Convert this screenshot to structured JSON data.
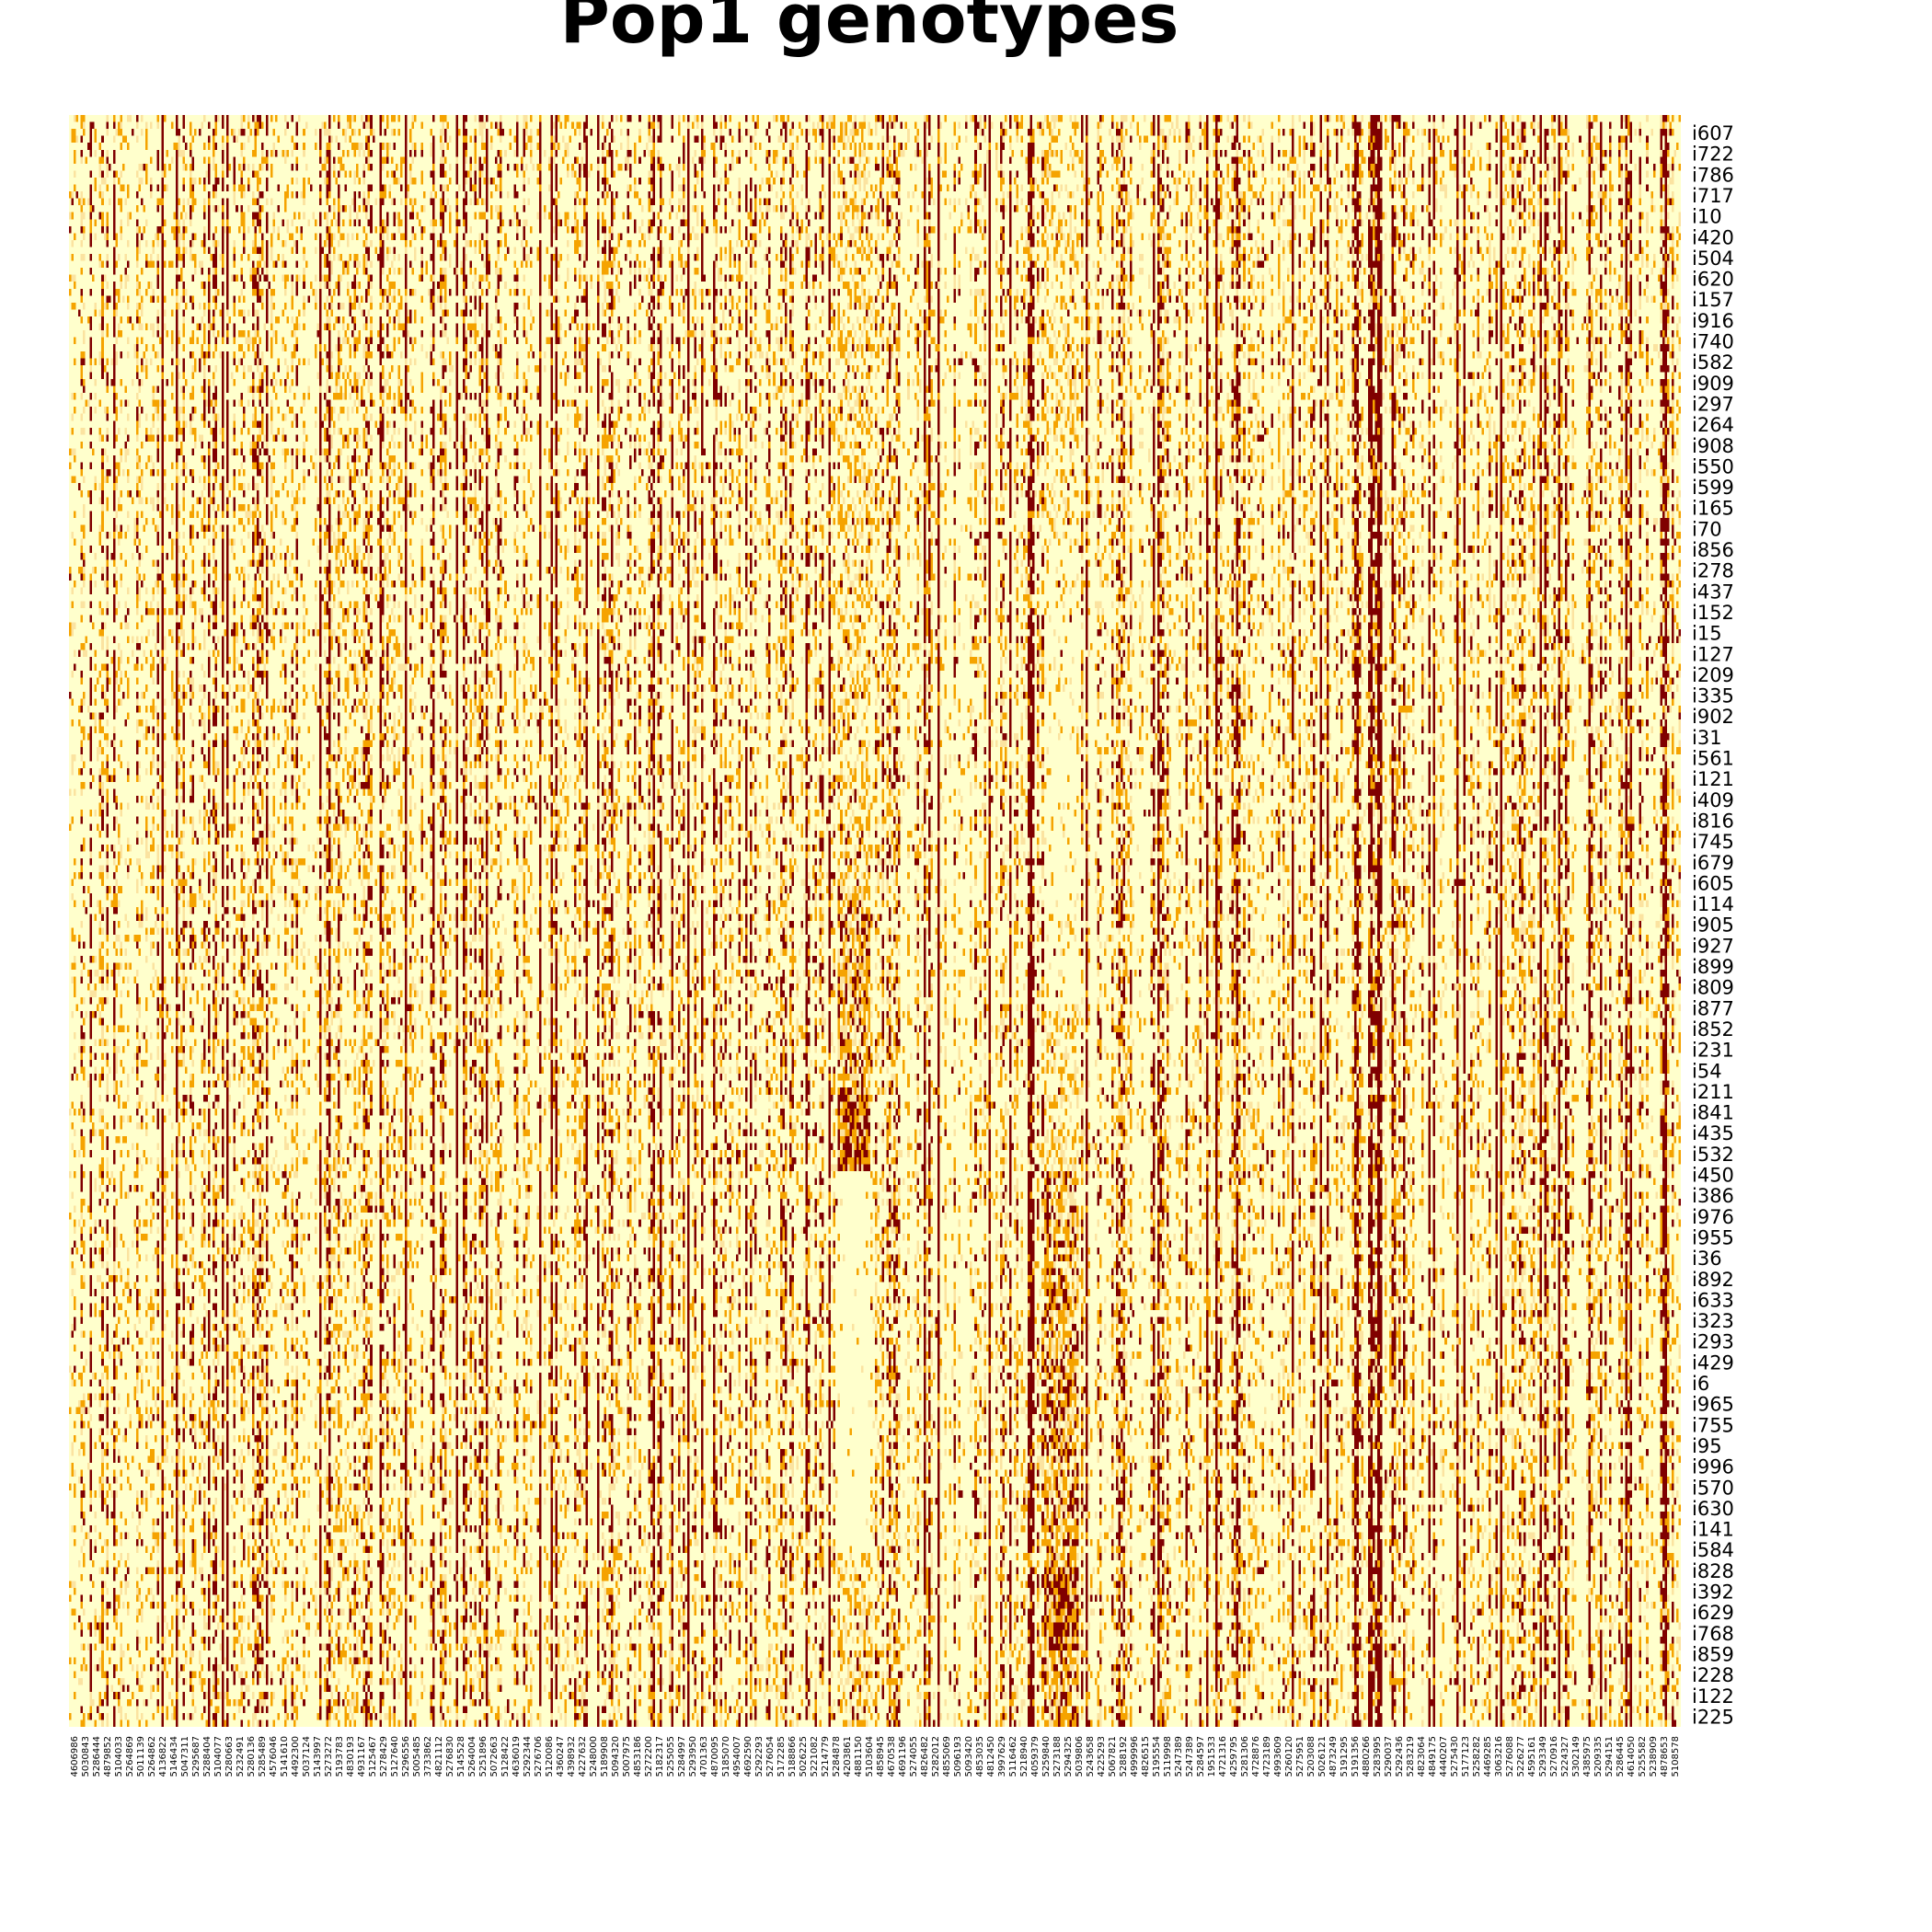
{
  "chart_data": {
    "type": "heatmap",
    "title": "Pop1 genotypes",
    "xlabel": "",
    "ylabel": "",
    "colors": {
      "genotype_0": "#ffffcc",
      "genotype_1": "#f5a300",
      "genotype_2": "#800000",
      "hetero_light": "#fbe3a0"
    },
    "row_labels": [
      "i607",
      "i722",
      "i786",
      "i717",
      "i10",
      "i420",
      "i504",
      "i620",
      "i157",
      "i916",
      "i740",
      "i582",
      "i909",
      "i297",
      "i264",
      "i908",
      "i550",
      "i599",
      "i165",
      "i70",
      "i856",
      "i278",
      "i437",
      "i152",
      "i15",
      "i127",
      "i209",
      "i335",
      "i902",
      "i31",
      "i561",
      "i121",
      "i409",
      "i816",
      "i745",
      "i679",
      "i605",
      "i114",
      "i905",
      "i927",
      "i899",
      "i809",
      "i877",
      "i852",
      "i231",
      "i54",
      "i211",
      "i841",
      "i435",
      "i532",
      "i450",
      "i386",
      "i976",
      "i955",
      "i36",
      "i892",
      "i633",
      "i323",
      "i293",
      "i429",
      "i6",
      "i965",
      "i755",
      "i95",
      "i996",
      "i570",
      "i630",
      "i141",
      "i584",
      "i828",
      "i392",
      "i629",
      "i768",
      "i859",
      "i228",
      "i122",
      "i225"
    ],
    "col_labels": [
      "4606986",
      "5030843",
      "5286444",
      "4879852",
      "5104033",
      "5264869",
      "5011139",
      "5264862",
      "4136822",
      "5146434",
      "5047311",
      "5295687",
      "5288404",
      "5104077",
      "5280663",
      "5232491",
      "5280136",
      "5285489",
      "4576046",
      "5141610",
      "4492300",
      "5037124",
      "5143997",
      "5273272",
      "5193783",
      "4830193",
      "4931167",
      "5125467",
      "5278429",
      "5127640",
      "5296556",
      "5005485",
      "3733862",
      "4821112",
      "5276830",
      "5145528",
      "5264004",
      "5251896",
      "5072663",
      "5128422",
      "4636019",
      "5292344",
      "5276706",
      "5120086",
      "4360247",
      "4398932",
      "4227632",
      "5248000",
      "5189908",
      "5094320",
      "5007975",
      "4853186",
      "5272200",
      "5182317",
      "5255055",
      "5284997",
      "5293950",
      "4701363",
      "4870095",
      "5185070",
      "4954007",
      "4692590",
      "5292293",
      "5276054",
      "5172285",
      "5188866",
      "5026225",
      "5221082",
      "5214779",
      "5284878",
      "4203861",
      "4881150",
      "5103604",
      "4858945",
      "4670538",
      "4691196",
      "5274055",
      "4826482",
      "5282012",
      "4855069",
      "5096193",
      "5093420",
      "4853035",
      "4812450",
      "3997629",
      "5116462",
      "5218940",
      "4059379",
      "5259840",
      "5273188",
      "5294325",
      "5039806",
      "5243658",
      "4225293",
      "5067821",
      "5288192",
      "4999996",
      "4826515",
      "5195554",
      "5119998",
      "5247389",
      "5247389",
      "5284597",
      "1951533",
      "4721316",
      "4259795",
      "5281306",
      "4728876",
      "4723189",
      "4993609",
      "5260120",
      "5275951",
      "5203088",
      "5026121",
      "4873249",
      "5191295",
      "5191356",
      "4880266",
      "5283995",
      "5290037",
      "5292436",
      "5283219",
      "4823064",
      "4849175",
      "4440207",
      "5275430",
      "5177123",
      "5258282",
      "4469285",
      "3063216",
      "5276088",
      "5226277",
      "4595161",
      "5293349",
      "5270916",
      "5224327",
      "5302149",
      "4385975",
      "5209335",
      "5294151",
      "5286445",
      "4614050",
      "5255582",
      "5238909",
      "4878653",
      "5108578"
    ],
    "n_rows": 232,
    "n_cols": 696,
    "ylim_index": [
      0,
      77
    ],
    "grid": false,
    "legend": "none"
  }
}
